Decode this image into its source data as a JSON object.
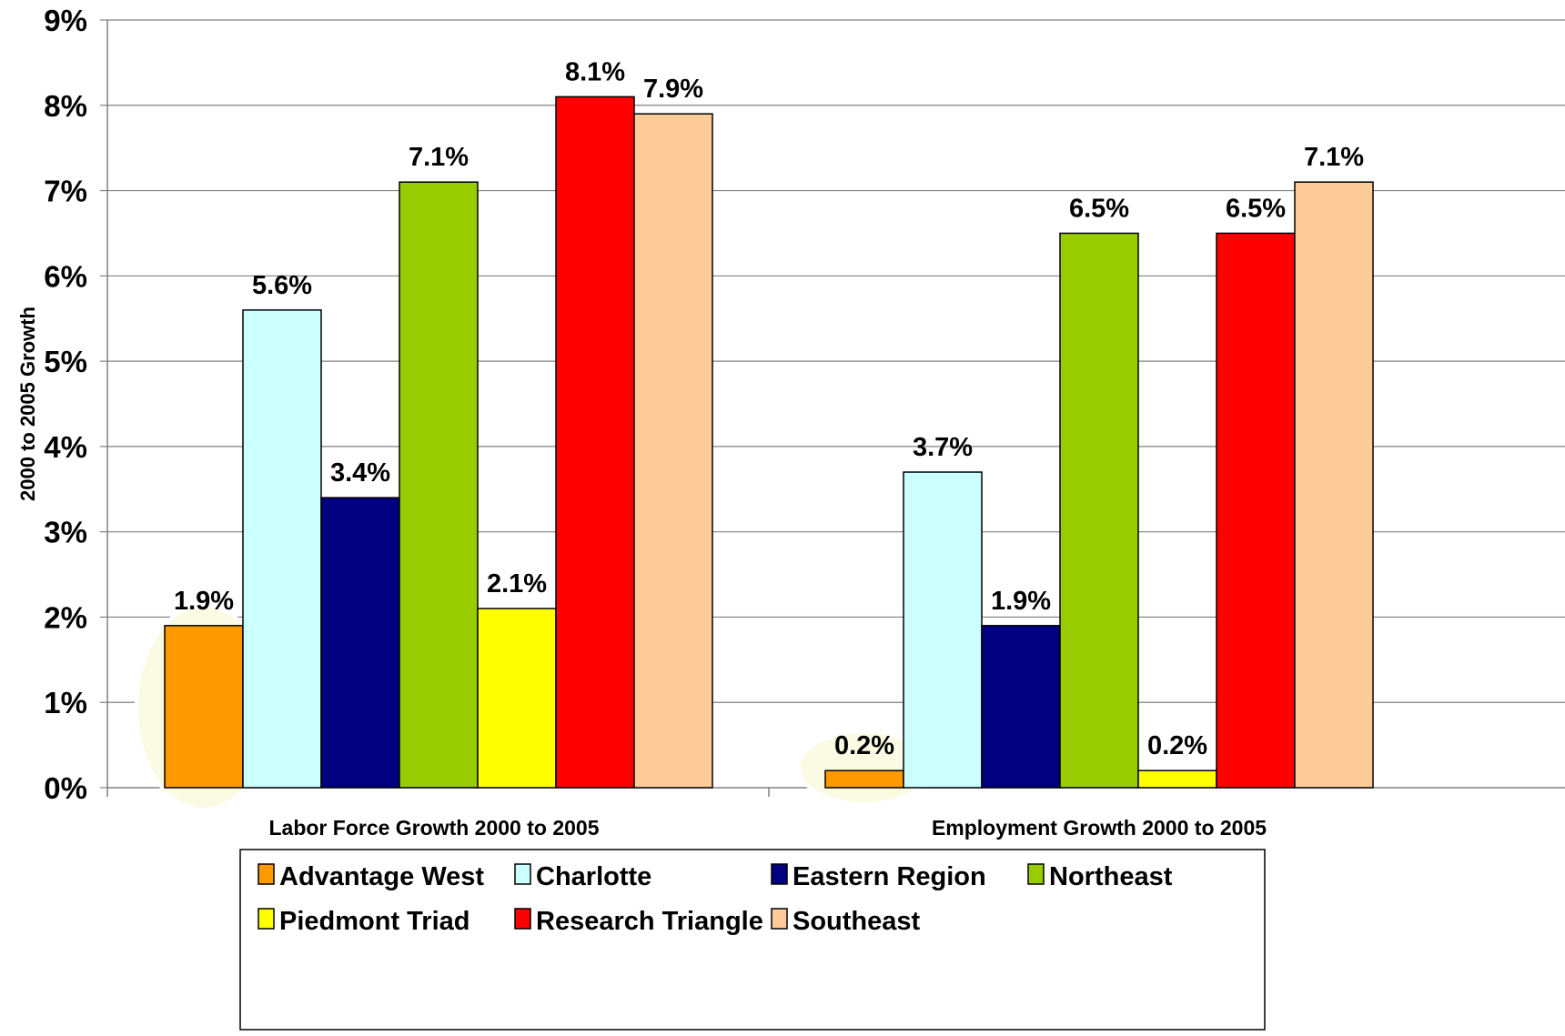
{
  "chart_data": {
    "type": "bar",
    "title": "",
    "ylabel": "2000 to 2005 Growth",
    "xlabel": "",
    "ylim": [
      0,
      9
    ],
    "y_ticks": [
      "0%",
      "1%",
      "2%",
      "3%",
      "4%",
      "5%",
      "6%",
      "7%",
      "8%",
      "9%"
    ],
    "grid": true,
    "legend_position": "bottom",
    "categories": [
      "Labor Force Growth 2000 to 2005",
      "Employment Growth 2000 to 2005"
    ],
    "series": [
      {
        "name": "Advantage West",
        "color": "#ff9900",
        "values": [
          1.9,
          0.2
        ],
        "labels": [
          "1.9%",
          "0.2%"
        ]
      },
      {
        "name": "Charlotte",
        "color": "#ccffff",
        "values": [
          5.6,
          3.7
        ],
        "labels": [
          "5.6%",
          "3.7%"
        ]
      },
      {
        "name": "Eastern Region",
        "color": "#000080",
        "values": [
          3.4,
          1.9
        ],
        "labels": [
          "3.4%",
          "1.9%"
        ]
      },
      {
        "name": "Northeast",
        "color": "#99cc00",
        "values": [
          7.1,
          6.5
        ],
        "labels": [
          "7.1%",
          "6.5%"
        ]
      },
      {
        "name": "Piedmont Triad",
        "color": "#ffff00",
        "values": [
          2.1,
          0.2
        ],
        "labels": [
          "2.1%",
          "0.2%"
        ]
      },
      {
        "name": "Research Triangle",
        "color": "#ff0000",
        "values": [
          8.1,
          6.5
        ],
        "labels": [
          "8.1%",
          "6.5%"
        ]
      },
      {
        "name": "Southeast",
        "color": "#ffcc99",
        "values": [
          7.9,
          7.1
        ],
        "labels": [
          "7.9%",
          "7.1%"
        ]
      }
    ],
    "highlights": [
      {
        "category": "Labor Force Growth 2000 to 2005",
        "series": "Advantage West"
      },
      {
        "category": "Employment Growth 2000 to 2005",
        "series": "Advantage West"
      }
    ]
  }
}
